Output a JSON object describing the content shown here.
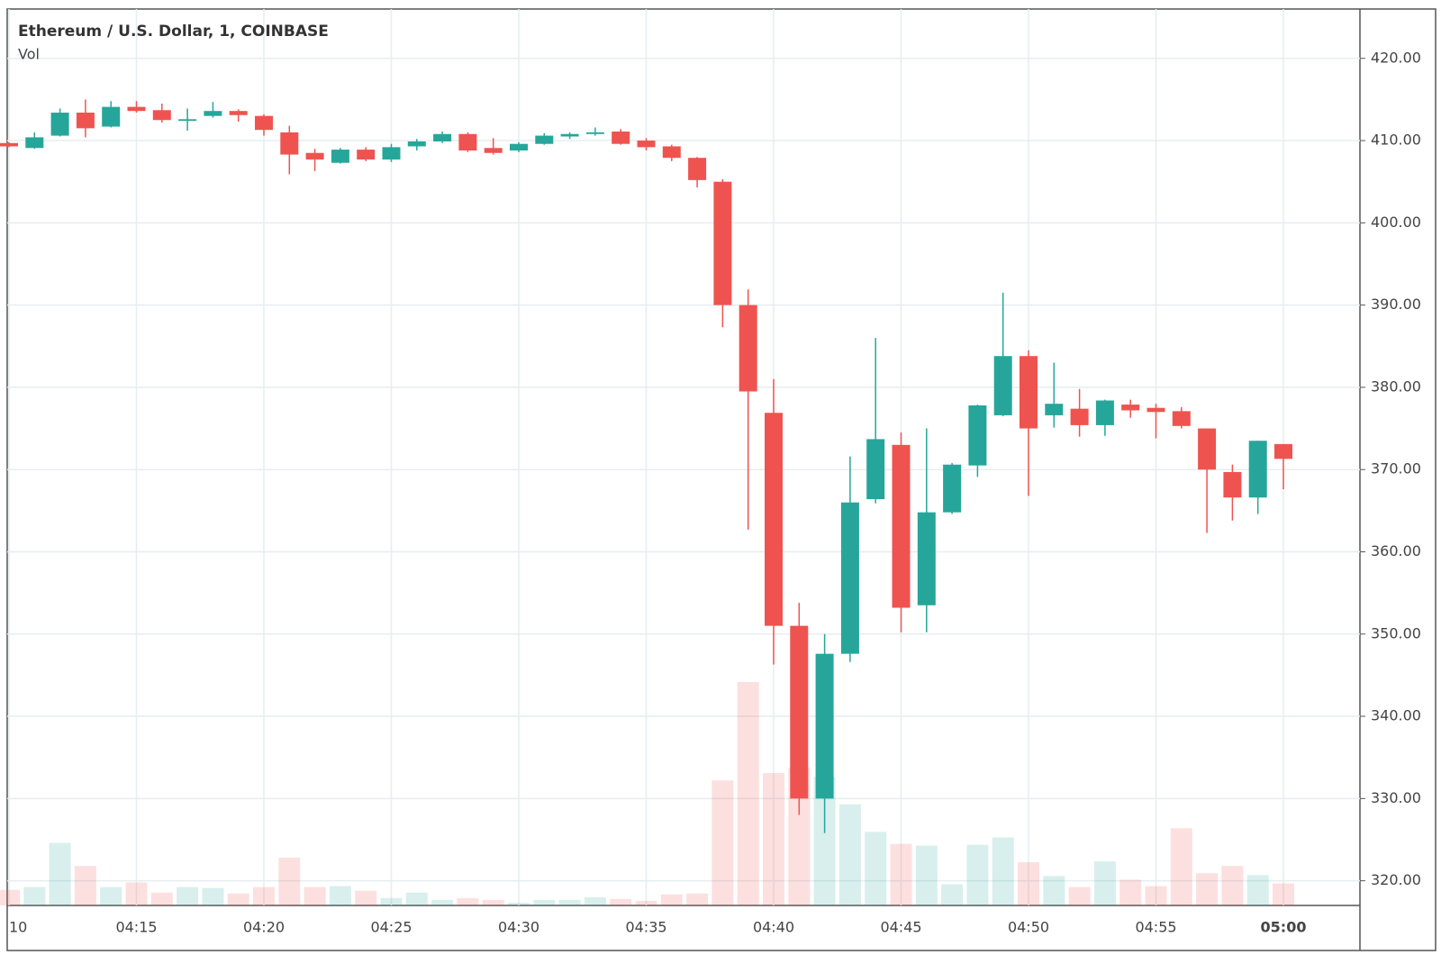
{
  "chart_data": {
    "type": "candlestick",
    "title": "Ethereum / U.S. Dollar, 1, COINBASE",
    "volume_label": "Vol",
    "categories": [
      "10",
      null,
      null,
      null,
      null,
      "04:15",
      null,
      null,
      null,
      null,
      "04:20",
      null,
      null,
      null,
      null,
      "04:25",
      null,
      null,
      null,
      null,
      "04:30",
      null,
      null,
      null,
      null,
      "04:35",
      null,
      null,
      null,
      null,
      "04:40",
      null,
      null,
      null,
      null,
      "04:45",
      null,
      null,
      null,
      null,
      "04:50",
      null,
      null,
      null,
      null,
      "04:55",
      null,
      null,
      null,
      null,
      "05:00"
    ],
    "open": [
      409.7,
      409.1,
      410.6,
      413.4,
      411.7,
      414.1,
      413.7,
      412.4,
      413.0,
      413.6,
      413.0,
      411.0,
      408.5,
      407.3,
      408.9,
      407.7,
      409.3,
      409.9,
      410.8,
      409.1,
      408.8,
      409.6,
      410.5,
      410.8,
      411.1,
      410.0,
      409.3,
      407.9,
      405.0,
      390.0,
      376.9,
      351.0,
      330.0,
      347.6,
      366.4,
      373.0,
      353.5,
      364.8,
      370.5,
      376.6,
      383.8,
      376.6,
      377.4,
      375.4,
      377.9,
      377.5,
      377.1,
      375.0,
      369.7,
      366.6,
      373.1
    ],
    "high": [
      409.8,
      411.0,
      413.9,
      415.0,
      414.8,
      414.8,
      414.5,
      413.9,
      414.7,
      413.8,
      413.2,
      411.8,
      409.0,
      409.1,
      409.2,
      409.6,
      410.2,
      411.1,
      411.0,
      410.3,
      409.8,
      410.9,
      411.0,
      411.6,
      411.4,
      410.3,
      409.5,
      408.0,
      405.3,
      391.9,
      381.0,
      353.8,
      350.0,
      371.6,
      386.0,
      374.5,
      375.0,
      370.8,
      377.9,
      391.5,
      384.5,
      383.0,
      379.8,
      378.5,
      378.5,
      378.0,
      377.6,
      375.0,
      370.6,
      373.5,
      373.1
    ],
    "low": [
      409.2,
      409.0,
      410.5,
      410.4,
      411.6,
      413.4,
      412.2,
      411.2,
      412.8,
      412.3,
      410.6,
      405.9,
      406.3,
      407.2,
      407.5,
      407.4,
      408.8,
      409.7,
      408.6,
      408.3,
      408.6,
      409.5,
      410.2,
      410.6,
      409.5,
      408.8,
      407.5,
      404.3,
      387.3,
      362.7,
      346.3,
      328.0,
      325.8,
      346.6,
      365.9,
      350.2,
      350.2,
      364.6,
      369.1,
      376.5,
      366.8,
      375.1,
      374.0,
      374.1,
      376.3,
      373.8,
      375.0,
      362.3,
      363.8,
      364.6,
      367.6
    ],
    "close": [
      409.3,
      410.4,
      413.4,
      411.5,
      414.1,
      413.6,
      412.5,
      412.6,
      413.6,
      413.1,
      411.3,
      408.3,
      407.7,
      408.9,
      407.7,
      409.2,
      409.9,
      410.8,
      408.8,
      408.5,
      409.6,
      410.6,
      410.8,
      411.0,
      409.6,
      409.2,
      407.9,
      405.2,
      390.0,
      379.5,
      351.0,
      330.0,
      347.6,
      366.0,
      373.7,
      353.2,
      364.8,
      370.6,
      377.8,
      383.8,
      375.0,
      378.0,
      375.4,
      378.4,
      377.2,
      377.0,
      375.3,
      370.0,
      366.6,
      373.5,
      371.3
    ],
    "volume": [
      17,
      20,
      68,
      43,
      20,
      25,
      14,
      20,
      19,
      13,
      20,
      52,
      20,
      21,
      16,
      8,
      14,
      6,
      8,
      6,
      3,
      6,
      6,
      9,
      7,
      5,
      12,
      13,
      136,
      243,
      144,
      150,
      140,
      110,
      80,
      67,
      65,
      23,
      66,
      74,
      47,
      32,
      20,
      48,
      28,
      21,
      84,
      35,
      43,
      33,
      24
    ],
    "volume_lim": [
      0,
      975
    ],
    "up_color": "#26a69a",
    "down_color": "#ef5350",
    "ylim": [
      317,
      426
    ],
    "yticks": [
      {
        "value": 320,
        "label": "320.00"
      },
      {
        "value": 330,
        "label": "330.00"
      },
      {
        "value": 340,
        "label": "340.00"
      },
      {
        "value": 350,
        "label": "350.00"
      },
      {
        "value": 360,
        "label": "360.00"
      },
      {
        "value": 370,
        "label": "370.00"
      },
      {
        "value": 380,
        "label": "380.00"
      },
      {
        "value": 390,
        "label": "390.00"
      },
      {
        "value": 400,
        "label": "400.00"
      },
      {
        "value": 410,
        "label": "410.00"
      },
      {
        "value": 420,
        "label": "420.00"
      }
    ],
    "grid": true
  }
}
